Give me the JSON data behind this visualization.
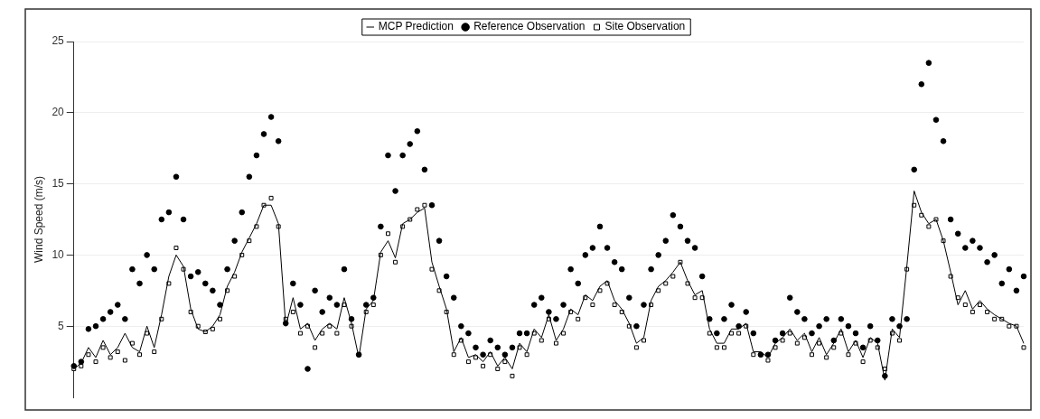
{
  "chart_data": {
    "type": "line",
    "ylabel": "Wind Speed (m/s)",
    "ylim": [
      0,
      25
    ],
    "yticks": [
      5,
      10,
      15,
      20,
      25
    ],
    "grid": "y",
    "legend": "top",
    "tick_labels": "y",
    "categories": [
      null,
      null,
      null,
      null,
      null,
      null,
      null,
      null,
      null,
      null,
      null,
      null,
      null,
      null,
      null,
      null,
      null,
      null,
      null,
      null,
      null,
      null,
      null,
      null,
      null,
      null,
      null,
      null,
      null,
      null,
      null,
      null,
      null,
      null,
      null,
      null,
      null,
      null,
      null,
      null,
      null,
      null,
      null,
      null,
      null,
      null,
      null,
      null,
      null,
      null,
      null,
      null,
      null,
      null,
      null,
      null,
      null,
      null,
      null,
      null,
      null,
      null,
      null,
      null,
      null,
      null,
      null,
      null,
      null,
      null,
      null,
      null,
      null,
      null,
      null,
      null,
      null,
      null,
      null,
      null,
      null,
      null,
      null,
      null,
      null,
      null,
      null,
      null,
      null,
      null,
      null,
      null,
      null,
      null,
      null,
      null,
      null,
      null,
      null,
      null,
      null,
      null,
      null,
      null,
      null,
      null,
      null,
      null,
      null,
      null,
      null,
      null,
      null,
      null,
      null,
      null,
      null,
      null,
      null,
      null,
      null,
      null,
      null,
      null,
      null,
      null,
      null,
      null,
      null,
      null,
      null
    ],
    "series": [
      {
        "name": "MCP Prediction",
        "marker": "none",
        "color": "#000000",
        "values": [
          2.0,
          2.4,
          3.5,
          2.8,
          4.0,
          3.0,
          3.5,
          4.5,
          3.5,
          3.2,
          5.0,
          3.5,
          5.8,
          8.5,
          10.0,
          9.2,
          6.2,
          4.8,
          4.6,
          5.0,
          5.8,
          7.8,
          8.8,
          10.2,
          11.2,
          12.2,
          13.5,
          13.5,
          12.2,
          5.0,
          7.0,
          4.8,
          5.2,
          4.0,
          4.8,
          5.2,
          4.8,
          7.0,
          5.2,
          2.8,
          6.2,
          6.8,
          10.2,
          11.0,
          9.8,
          12.2,
          12.5,
          13.0,
          13.3,
          9.5,
          7.8,
          6.2,
          3.2,
          4.2,
          2.8,
          3.0,
          2.5,
          3.2,
          2.2,
          2.8,
          2.0,
          3.8,
          3.2,
          4.8,
          4.2,
          5.8,
          4.0,
          4.8,
          6.2,
          5.8,
          7.2,
          6.8,
          7.8,
          8.2,
          6.8,
          6.2,
          5.2,
          3.8,
          4.2,
          6.8,
          7.8,
          8.2,
          8.8,
          9.5,
          8.2,
          7.2,
          7.5,
          4.8,
          3.8,
          3.8,
          4.8,
          4.8,
          5.2,
          3.2,
          3.2,
          2.8,
          3.8,
          4.2,
          4.8,
          4.0,
          4.5,
          3.2,
          4.2,
          3.0,
          3.8,
          4.8,
          3.2,
          4.0,
          2.8,
          4.2,
          3.8,
          1.2,
          4.8,
          4.2,
          9.2,
          14.5,
          13.0,
          12.2,
          12.5,
          11.0,
          8.8,
          6.5,
          7.5,
          6.2,
          6.8,
          6.2,
          5.8,
          5.5,
          5.2,
          5.0,
          3.8
        ]
      },
      {
        "name": "Reference Observation",
        "type": "scatter",
        "marker": "circle",
        "color": "#000000",
        "values": [
          2.2,
          2.5,
          4.8,
          5.0,
          5.5,
          6.0,
          6.5,
          5.5,
          9.0,
          8.0,
          10.0,
          9.0,
          12.5,
          13.0,
          15.5,
          12.5,
          8.5,
          8.8,
          8.0,
          7.5,
          6.5,
          9.0,
          11.0,
          13.0,
          15.5,
          17.0,
          18.5,
          19.7,
          18.0,
          5.2,
          8.0,
          6.5,
          2.0,
          7.5,
          6.0,
          7.0,
          6.5,
          9.0,
          5.5,
          3.0,
          6.5,
          7.0,
          12.0,
          17.0,
          14.5,
          17.0,
          17.8,
          18.7,
          16.0,
          13.5,
          11.0,
          8.5,
          7.0,
          5.0,
          4.5,
          3.5,
          3.0,
          4.0,
          3.5,
          3.0,
          3.5,
          4.5,
          4.5,
          6.5,
          7.0,
          6.0,
          5.5,
          6.5,
          9.0,
          8.0,
          10.0,
          10.5,
          12.0,
          10.5,
          9.5,
          9.0,
          7.0,
          5.0,
          6.5,
          9.0,
          10.0,
          11.0,
          12.8,
          12.0,
          11.0,
          10.5,
          8.5,
          5.5,
          4.5,
          5.5,
          6.5,
          5.0,
          6.0,
          4.5,
          3.0,
          3.0,
          4.0,
          4.5,
          7.0,
          6.0,
          5.5,
          4.5,
          5.0,
          5.5,
          4.0,
          5.5,
          5.0,
          4.5,
          3.5,
          5.0,
          4.0,
          1.5,
          5.5,
          5.0,
          5.5,
          16.0,
          22.0,
          23.5,
          19.5,
          18.0,
          12.5,
          11.5,
          10.5,
          11.0,
          10.5,
          9.5,
          10.0,
          8.0,
          9.0,
          7.5,
          8.5
        ]
      },
      {
        "name": "Site Observation",
        "type": "scatter",
        "marker": "square",
        "color": "#000000",
        "values": [
          2.0,
          2.2,
          3.0,
          2.5,
          3.5,
          2.8,
          3.2,
          2.6,
          3.8,
          3.0,
          4.5,
          3.2,
          5.5,
          8.0,
          10.5,
          9.0,
          6.0,
          5.0,
          4.6,
          4.8,
          5.5,
          7.5,
          8.5,
          10.0,
          11.0,
          12.0,
          13.5,
          14.0,
          12.0,
          5.5,
          6.0,
          4.5,
          5.0,
          3.5,
          4.5,
          5.0,
          4.5,
          6.5,
          5.0,
          3.0,
          6.0,
          6.5,
          10.0,
          11.5,
          9.5,
          12.0,
          12.5,
          13.2,
          13.5,
          9.0,
          7.5,
          6.0,
          3.0,
          4.0,
          2.5,
          2.8,
          2.2,
          3.0,
          2.0,
          2.5,
          1.5,
          3.5,
          3.0,
          4.5,
          4.0,
          5.5,
          3.8,
          4.5,
          6.0,
          5.5,
          7.0,
          6.5,
          7.5,
          8.0,
          6.5,
          6.0,
          5.0,
          3.5,
          4.0,
          6.5,
          7.5,
          8.0,
          8.5,
          9.5,
          8.0,
          7.0,
          7.0,
          4.5,
          3.5,
          3.5,
          4.5,
          4.5,
          5.0,
          3.0,
          3.0,
          2.6,
          3.5,
          4.0,
          4.5,
          3.8,
          4.2,
          3.0,
          3.8,
          2.8,
          3.5,
          4.5,
          3.0,
          3.8,
          2.5,
          4.0,
          3.5,
          2.0,
          4.5,
          4.0,
          9.0,
          13.5,
          12.8,
          12.0,
          12.5,
          11.0,
          8.5,
          7.0,
          6.5,
          6.0,
          6.5,
          6.0,
          5.5,
          5.5,
          5.0,
          5.0,
          3.5
        ]
      }
    ]
  }
}
